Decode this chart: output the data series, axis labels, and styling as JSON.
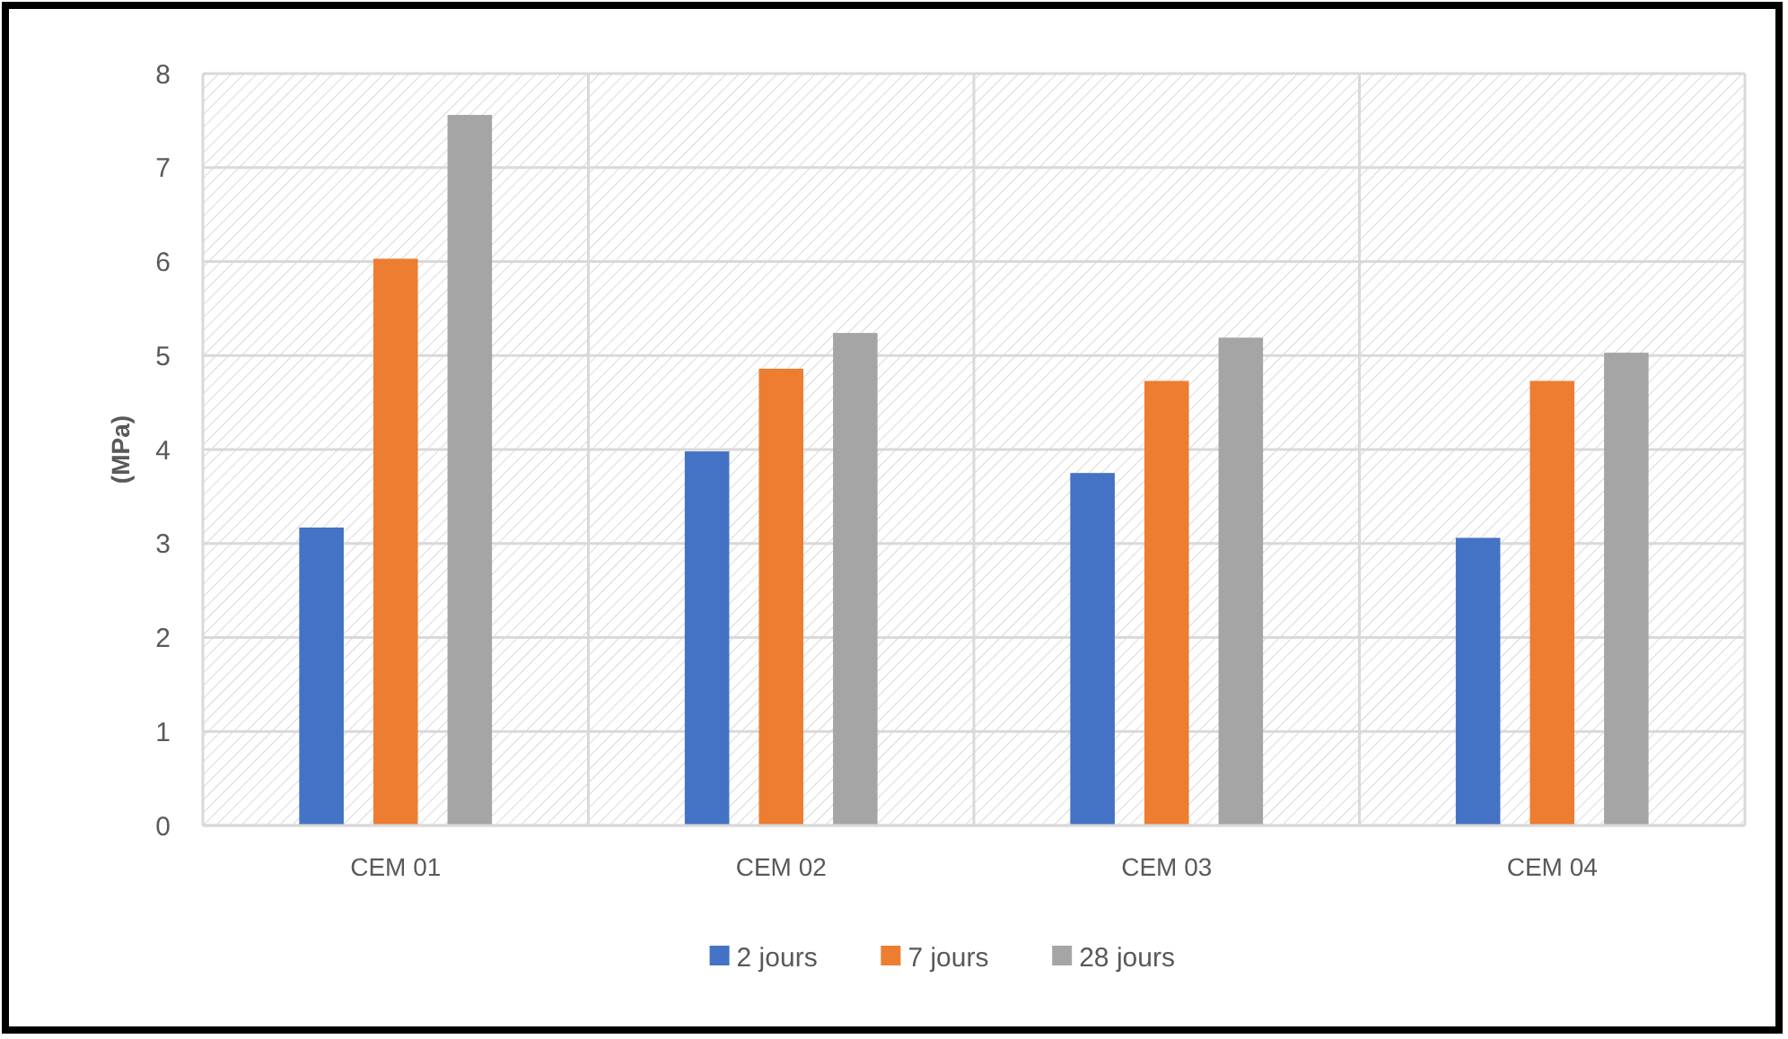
{
  "chart_data": {
    "type": "bar",
    "ylabel": "(MPa)",
    "categories": [
      "CEM 01",
      "CEM 02",
      "CEM 03",
      "CEM 04"
    ],
    "series": [
      {
        "name": "2 jours",
        "color": "#4472c4",
        "values": [
          3.17,
          3.98,
          3.75,
          3.06
        ]
      },
      {
        "name": "7 jours",
        "color": "#ed7d31",
        "values": [
          6.03,
          4.86,
          4.73,
          4.73
        ]
      },
      {
        "name": "28 jours",
        "color": "#a5a5a5",
        "values": [
          7.56,
          5.24,
          5.19,
          5.03
        ]
      }
    ],
    "ylim": [
      0,
      8
    ],
    "yticks": [
      0,
      1,
      2,
      3,
      4,
      5,
      6,
      7,
      8
    ],
    "grid": true,
    "legend": "bottom"
  }
}
